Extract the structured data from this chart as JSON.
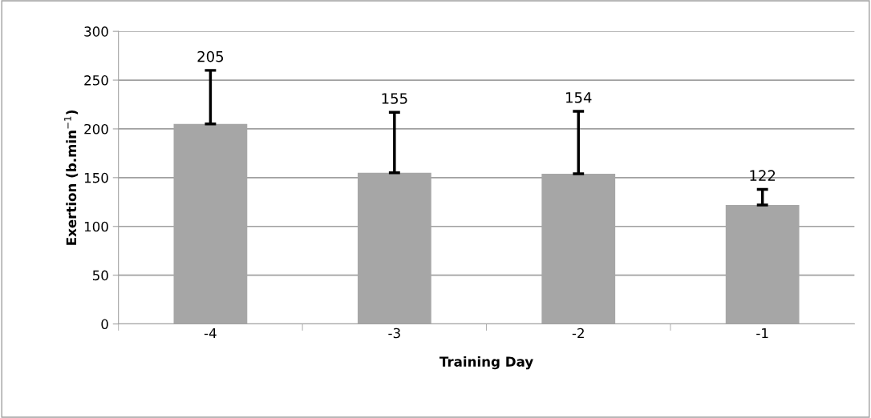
{
  "chart_data": {
    "type": "bar",
    "xlabel": "Training Day",
    "ylabel": "Exertion (b.min$^{−1}$)",
    "categories": [
      "-4",
      "-3",
      "-2",
      "-1"
    ],
    "values": [
      205,
      155,
      154,
      122
    ],
    "errors": [
      [
        205,
        260
      ],
      [
        155,
        217
      ],
      [
        154,
        218
      ],
      [
        122,
        138
      ]
    ],
    "color": "#a6a6a6",
    "annotations": [
      {
        "text": "205",
        "x": "-4",
        "y": 260
      },
      {
        "text": "155",
        "x": "-3",
        "y": 217
      },
      {
        "text": "154",
        "x": "-2",
        "y": 218
      },
      {
        "text": "122",
        "x": "-1",
        "y": 138
      }
    ],
    "ylim": [
      0,
      300
    ],
    "yticks": [
      0,
      50,
      100,
      150,
      200,
      250,
      300
    ],
    "grid": "y",
    "legend": false
  }
}
